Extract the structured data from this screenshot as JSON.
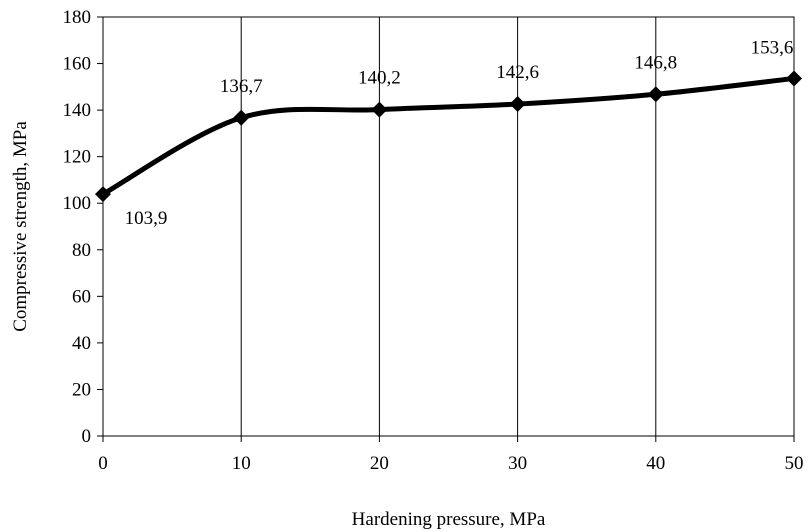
{
  "chart_data": {
    "type": "line",
    "title": "",
    "xlabel": "Hardening pressure, MPa",
    "ylabel": "Compressive strength, MPa",
    "xlim": [
      0,
      50
    ],
    "ylim": [
      0,
      180
    ],
    "xticks": [
      0,
      10,
      20,
      30,
      40,
      50
    ],
    "yticks": [
      0,
      20,
      40,
      60,
      80,
      100,
      120,
      140,
      160,
      180
    ],
    "grid": "vertical",
    "legend": "none",
    "series": [
      {
        "x": [
          0,
          10,
          20,
          30,
          40,
          50
        ],
        "y": [
          103.9,
          136.7,
          140.2,
          142.6,
          146.8,
          153.6
        ],
        "labels": [
          "103,9",
          "136,7",
          "140,2",
          "142,6",
          "146,8",
          "153,6"
        ],
        "color": "#000000",
        "marker": "diamond",
        "smooth": true
      }
    ]
  }
}
